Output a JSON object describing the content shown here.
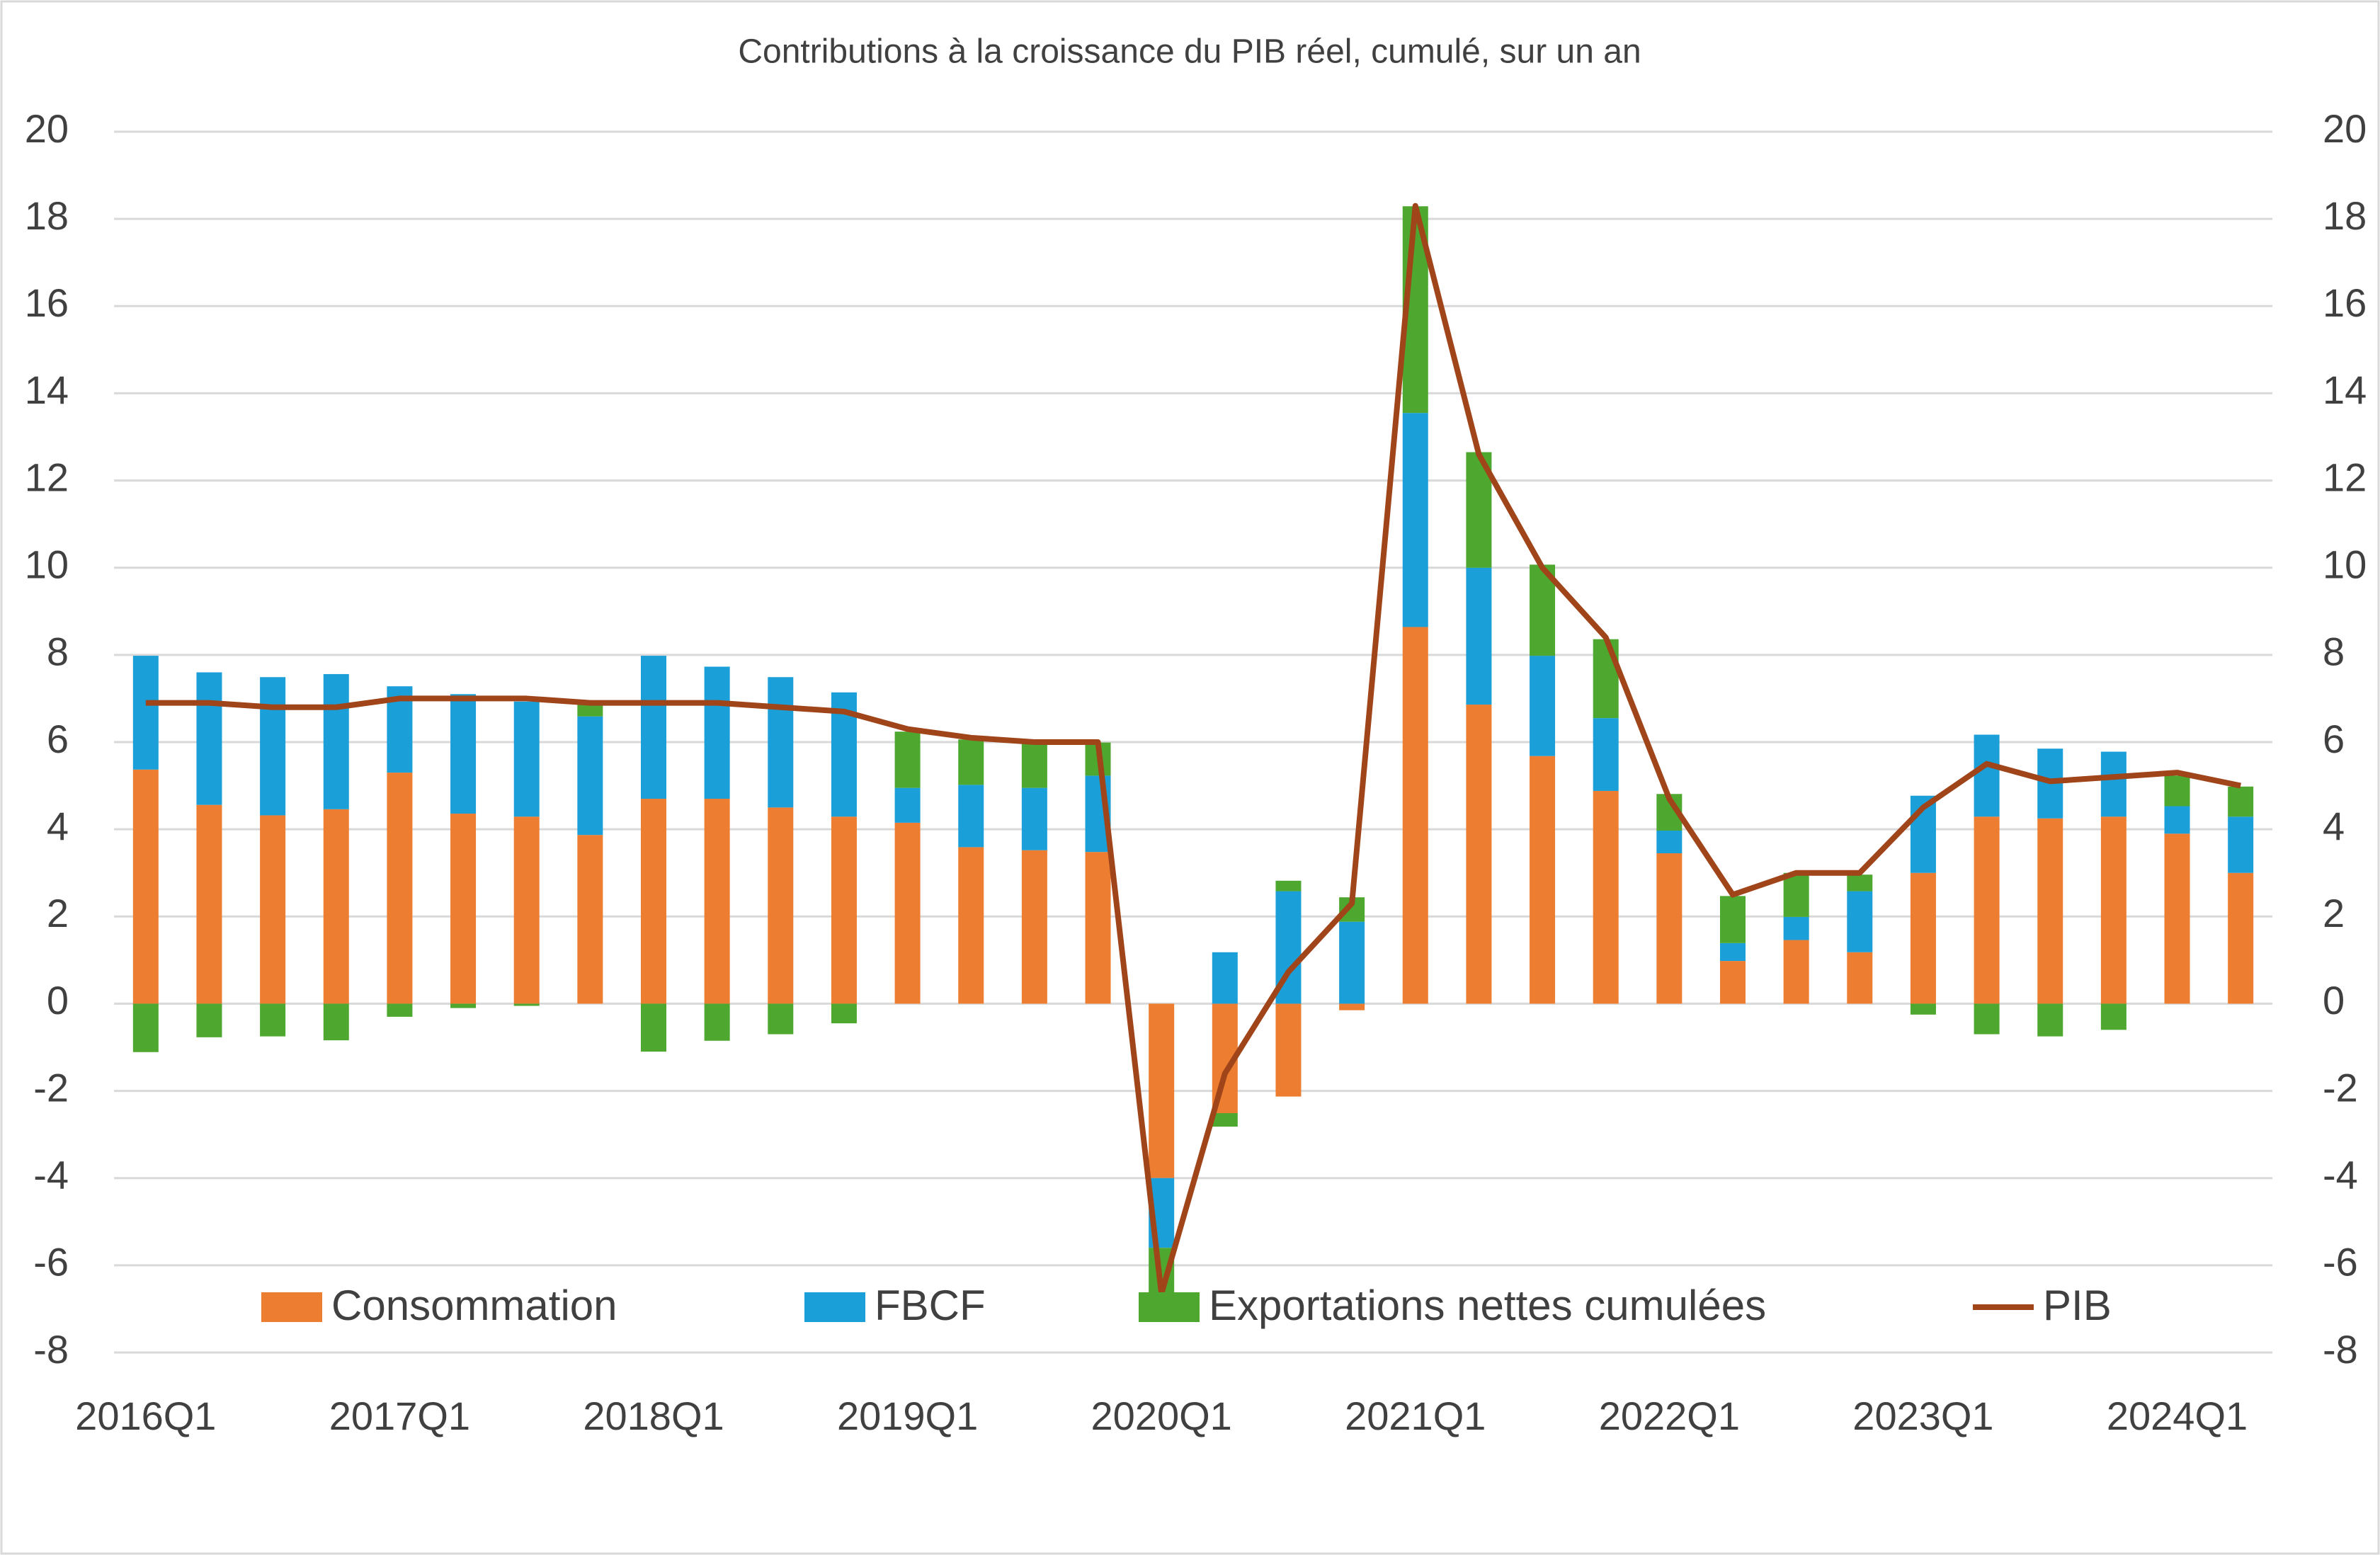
{
  "chart_data": {
    "type": "bar",
    "stacked": true,
    "title": "Contributions à la croissance du PIB réel, cumulé, sur un an",
    "categories": [
      "2016Q1",
      null,
      null,
      null,
      "2017Q1",
      null,
      null,
      null,
      "2018Q1",
      null,
      null,
      null,
      "2019Q1",
      null,
      null,
      null,
      "2020Q1",
      null,
      null,
      null,
      "2021Q1",
      null,
      null,
      null,
      "2022Q1",
      null,
      null,
      null,
      "2023Q1",
      null,
      null,
      null,
      "2024Q1",
      null
    ],
    "series": [
      {
        "name": "Consommation",
        "type": "bar",
        "color": "#ed7d31",
        "values": [
          5.37,
          4.56,
          4.32,
          4.46,
          5.3,
          4.36,
          4.29,
          3.87,
          4.7,
          4.7,
          4.5,
          4.29,
          4.15,
          3.59,
          3.52,
          3.48,
          -4.0,
          -2.51,
          -2.13,
          -0.15,
          8.64,
          6.86,
          5.68,
          4.88,
          3.45,
          0.98,
          1.46,
          1.18,
          3.0,
          4.29,
          4.25,
          4.29,
          3.9,
          3.0
        ]
      },
      {
        "name": "FBCF",
        "type": "bar",
        "color": "#1b9fd8",
        "values": [
          2.61,
          3.04,
          3.17,
          3.1,
          1.98,
          2.74,
          2.64,
          2.72,
          3.28,
          3.03,
          2.99,
          2.85,
          0.8,
          1.43,
          1.43,
          1.75,
          -1.6,
          1.18,
          2.58,
          1.88,
          4.91,
          3.14,
          2.3,
          1.67,
          0.52,
          0.41,
          0.53,
          1.4,
          1.77,
          1.88,
          1.6,
          1.49,
          0.63,
          1.29
        ]
      },
      {
        "name": "Exportations nettes cumulées",
        "type": "bar",
        "color": "#4ea72e",
        "values": [
          -1.11,
          -0.77,
          -0.75,
          -0.84,
          -0.3,
          -0.1,
          -0.05,
          0.28,
          -1.1,
          -0.85,
          -0.7,
          -0.45,
          1.29,
          1.04,
          1.04,
          0.76,
          -1.09,
          -0.31,
          0.24,
          0.56,
          4.74,
          2.65,
          2.09,
          1.81,
          0.84,
          1.08,
          1.01,
          0.38,
          -0.25,
          -0.7,
          -0.75,
          -0.6,
          0.7,
          0.69
        ]
      },
      {
        "name": "PIB",
        "type": "line",
        "axis": "y2",
        "color": "#a0441a",
        "values": [
          6.9,
          6.9,
          6.8,
          6.8,
          7.0,
          7.0,
          7.0,
          6.9,
          6.9,
          6.9,
          6.8,
          6.7,
          6.3,
          6.1,
          6.0,
          6.0,
          -6.65,
          -1.6,
          0.73,
          2.3,
          18.3,
          12.6,
          10.0,
          8.4,
          4.7,
          2.5,
          3.0,
          3.0,
          4.5,
          5.5,
          5.1,
          5.2,
          5.3,
          5.0
        ]
      }
    ],
    "ylim": [
      -8,
      20
    ],
    "yticks": [
      -8,
      -6,
      -4,
      -2,
      0,
      2,
      4,
      6,
      8,
      10,
      12,
      14,
      16,
      18,
      20
    ],
    "y2lim": [
      -8,
      20
    ],
    "y2ticks": [
      -8,
      -6,
      -4,
      -2,
      0,
      2,
      4,
      6,
      8,
      10,
      12,
      14,
      16,
      18,
      20
    ],
    "grid": true,
    "legend": "bottom"
  }
}
